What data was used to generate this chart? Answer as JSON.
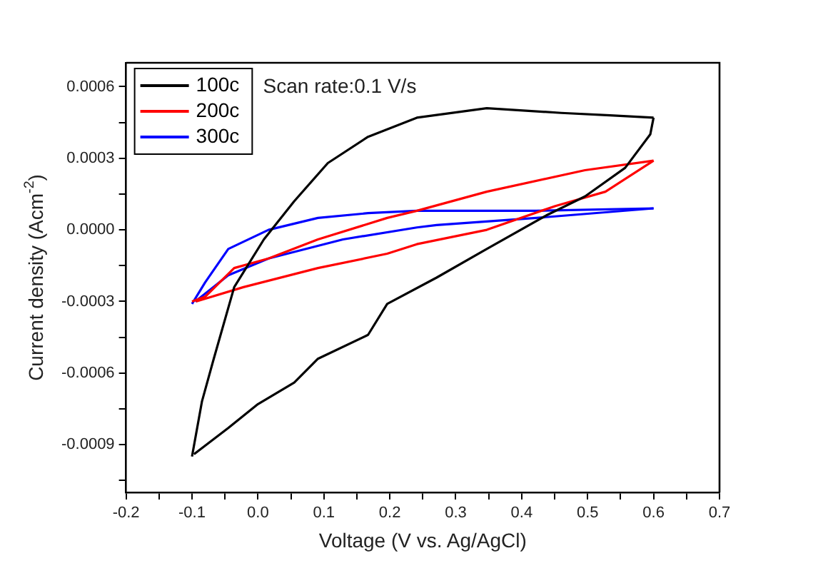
{
  "chart_data": {
    "type": "line",
    "xlabel": "Voltage (V vs. Ag/AgCl)",
    "ylabel": "Current density (Acm$^{-2}$)",
    "annotations": [
      "Scan rate:0.1 V/s"
    ],
    "xlim": [
      -0.2,
      0.7
    ],
    "xticks": [
      -0.2,
      {
        "value": -0.15,
        "label": null
      },
      -0.1,
      {
        "value": -0.05,
        "label": null
      },
      {
        "value": 0,
        "label": "0.0"
      },
      {
        "value": 0.05,
        "label": null
      },
      0.1,
      {
        "value": 0.15,
        "label": null
      },
      0.2,
      {
        "value": 0.25,
        "label": null
      },
      0.3,
      {
        "value": 0.35,
        "label": null
      },
      0.4,
      {
        "value": 0.45,
        "label": null
      },
      0.5,
      {
        "value": 0.55,
        "label": null
      },
      0.6,
      {
        "value": 0.65,
        "label": null
      },
      0.7
    ],
    "ylim": [
      -0.0011,
      0.0007
    ],
    "yticks": [
      {
        "value": -0.00105,
        "label": null
      },
      -0.0009,
      {
        "value": -0.00075,
        "label": null
      },
      -0.0006,
      {
        "value": -0.00045,
        "label": null
      },
      -0.0003,
      {
        "value": -0.00015,
        "label": null
      },
      {
        "value": 0,
        "label": "0.0000"
      },
      {
        "value": 0.00015,
        "label": null
      },
      0.0003,
      {
        "value": 0.00045,
        "label": null
      },
      0.0006
    ],
    "grid": false,
    "legend": "top left",
    "line_style": "solid",
    "marker": "none",
    "series": [
      {
        "name": "100c",
        "color": "#000000",
        "x": [
          -0.1,
          -0.085,
          -0.067,
          -0.036,
          0.009,
          0.055,
          0.106,
          0.167,
          0.241,
          0.347,
          0.46,
          0.534,
          0.6
        ],
        "values": [
          -0.00095,
          -0.00072,
          -0.00054,
          -0.00024,
          -4e-05,
          0.00012,
          0.00028,
          0.00039,
          0.00047,
          0.00051,
          0.00049,
          0.00048,
          0.00047
        ]
      },
      {
        "color": "#000000",
        "x": [
          0.6,
          0.595,
          0.557,
          0.496,
          0.437,
          0.347,
          0.271,
          0.196,
          0.167,
          0.091,
          0.055,
          0.0,
          -0.045,
          -0.097
        ],
        "values": [
          0.00047,
          0.0004,
          0.00026,
          0.00014,
          6e-05,
          -8e-05,
          -0.0002,
          -0.00031,
          -0.00044,
          -0.00054,
          -0.00064,
          -0.00073,
          -0.00083,
          -0.00094
        ]
      },
      {
        "name": "200c",
        "color": "#ff0000",
        "x": [
          -0.1,
          -0.08,
          -0.036,
          0.016,
          0.091,
          0.196,
          0.241,
          0.347,
          0.496,
          0.6
        ],
        "values": [
          -0.0003,
          -0.00028,
          -0.00016,
          -0.00012,
          -4e-05,
          5e-05,
          8e-05,
          0.00016,
          0.00025,
          0.00029
        ]
      },
      {
        "color": "#ff0000",
        "x": [
          0.6,
          0.527,
          0.451,
          0.347,
          0.241,
          0.196,
          0.091,
          -0.022,
          -0.094
        ],
        "values": [
          0.00029,
          0.00016,
          0.0001,
          0.0,
          -6e-05,
          -0.0001,
          -0.00016,
          -0.00024,
          -0.0003
        ]
      },
      {
        "name": "300c",
        "color": "#0000ff",
        "x": [
          -0.1,
          -0.08,
          -0.045,
          0.016,
          0.091,
          0.167,
          0.241,
          0.422,
          0.6
        ],
        "values": [
          -0.00031,
          -0.00022,
          -8e-05,
          0.0,
          5e-05,
          7e-05,
          8e-05,
          8e-05,
          9e-05
        ]
      },
      {
        "color": "#0000ff",
        "x": [
          0.6,
          0.422,
          0.271,
          0.241,
          0.129,
          0.016,
          -0.045,
          -0.095
        ],
        "values": [
          9e-05,
          5e-05,
          2e-05,
          1e-05,
          -4e-05,
          -0.00012,
          -0.00019,
          -0.0003
        ]
      }
    ]
  }
}
